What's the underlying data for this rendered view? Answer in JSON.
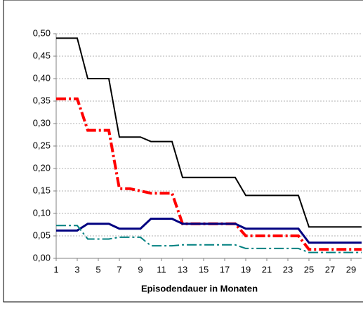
{
  "chart_data": {
    "type": "line",
    "x_label": "Episodendauer in Monaten",
    "x": [
      1,
      2,
      3,
      4,
      5,
      6,
      7,
      8,
      9,
      10,
      11,
      12,
      13,
      14,
      15,
      16,
      17,
      18,
      19,
      20,
      21,
      22,
      23,
      24,
      25,
      26,
      27,
      28,
      29,
      30
    ],
    "xlim": [
      1,
      30
    ],
    "xticks": [
      1,
      3,
      5,
      7,
      9,
      11,
      13,
      15,
      17,
      19,
      21,
      23,
      25,
      27,
      29
    ],
    "ylim": [
      0,
      0.5
    ],
    "yticks": [
      {
        "value": 0,
        "label": "0,00"
      },
      {
        "value": 0.05,
        "label": "0,05"
      },
      {
        "value": 0.1,
        "label": "0,10"
      },
      {
        "value": 0.15,
        "label": "0,15"
      },
      {
        "value": 0.2,
        "label": "0,20"
      },
      {
        "value": 0.25,
        "label": "0,25"
      },
      {
        "value": 0.3,
        "label": "0,30"
      },
      {
        "value": 0.35,
        "label": "0,35"
      },
      {
        "value": 0.4,
        "label": "0,40"
      },
      {
        "value": 0.45,
        "label": "0,45"
      },
      {
        "value": 0.5,
        "label": "0,50"
      }
    ],
    "grid": true,
    "series": [
      {
        "color": "#000000",
        "linestyle": "solid",
        "values": [
          0.49,
          0.49,
          0.49,
          0.4,
          0.4,
          0.4,
          0.27,
          0.27,
          0.27,
          0.26,
          0.26,
          0.26,
          0.18,
          0.18,
          0.18,
          0.18,
          0.18,
          0.18,
          0.14,
          0.14,
          0.14,
          0.14,
          0.14,
          0.14,
          0.07,
          0.07,
          0.07,
          0.07,
          0.07,
          0.07
        ]
      },
      {
        "color": "#ff0000",
        "linestyle": "dashdot",
        "values": [
          0.355,
          0.355,
          0.355,
          0.285,
          0.285,
          0.285,
          0.155,
          0.155,
          0.15,
          0.145,
          0.145,
          0.145,
          0.077,
          0.077,
          0.077,
          0.077,
          0.077,
          0.077,
          0.05,
          0.05,
          0.05,
          0.05,
          0.05,
          0.05,
          0.02,
          0.02,
          0.02,
          0.02,
          0.02,
          0.02
        ]
      },
      {
        "color": "#000080",
        "linestyle": "solid",
        "values": [
          0.062,
          0.062,
          0.062,
          0.077,
          0.077,
          0.077,
          0.066,
          0.066,
          0.066,
          0.088,
          0.088,
          0.088,
          0.077,
          0.077,
          0.077,
          0.077,
          0.077,
          0.077,
          0.066,
          0.066,
          0.066,
          0.066,
          0.066,
          0.066,
          0.035,
          0.035,
          0.035,
          0.035,
          0.035,
          0.035
        ]
      },
      {
        "color": "#008080",
        "linestyle": "dashdot",
        "values": [
          0.073,
          0.073,
          0.073,
          0.043,
          0.043,
          0.043,
          0.047,
          0.047,
          0.047,
          0.028,
          0.028,
          0.028,
          0.03,
          0.03,
          0.03,
          0.03,
          0.03,
          0.03,
          0.022,
          0.022,
          0.022,
          0.022,
          0.022,
          0.022,
          0.013,
          0.013,
          0.013,
          0.013,
          0.013,
          0.013
        ]
      }
    ]
  }
}
